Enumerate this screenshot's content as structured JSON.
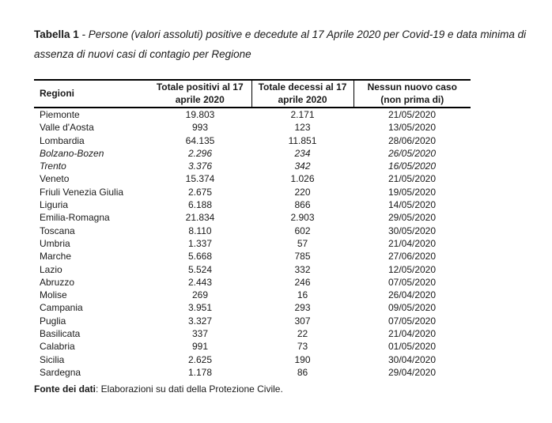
{
  "caption": {
    "label": "Tabella 1",
    "rest": " - Persone (valori assoluti) positive e decedute al 17 Aprile 2020 per Covid-19 e data minima di assenza di nuovi casi di contagio per Regione"
  },
  "table": {
    "headers": [
      {
        "label": "Regioni"
      },
      {
        "label": "Totale positivi al 17\naprile 2020"
      },
      {
        "label": "Totale decessi al 17\naprile 2020"
      },
      {
        "label": "Nessun nuovo caso\n(non prima di)"
      }
    ],
    "rows": [
      {
        "region": "Piemonte",
        "positivi": "19.803",
        "decessi": "2.171",
        "nessun_nuovo_caso": "21/05/2020",
        "italic": false
      },
      {
        "region": "Valle d'Aosta",
        "positivi": "993",
        "decessi": "123",
        "nessun_nuovo_caso": "13/05/2020",
        "italic": false
      },
      {
        "region": "Lombardia",
        "positivi": "64.135",
        "decessi": "11.851",
        "nessun_nuovo_caso": "28/06/2020",
        "italic": false
      },
      {
        "region": "Bolzano-Bozen",
        "positivi": "2.296",
        "decessi": "234",
        "nessun_nuovo_caso": "26/05/2020",
        "italic": true
      },
      {
        "region": "Trento",
        "positivi": "3.376",
        "decessi": "342",
        "nessun_nuovo_caso": "16/05/2020",
        "italic": true
      },
      {
        "region": "Veneto",
        "positivi": "15.374",
        "decessi": "1.026",
        "nessun_nuovo_caso": "21/05/2020",
        "italic": false
      },
      {
        "region": "Friuli Venezia Giulia",
        "positivi": "2.675",
        "decessi": "220",
        "nessun_nuovo_caso": "19/05/2020",
        "italic": false
      },
      {
        "region": "Liguria",
        "positivi": "6.188",
        "decessi": "866",
        "nessun_nuovo_caso": "14/05/2020",
        "italic": false
      },
      {
        "region": "Emilia-Romagna",
        "positivi": "21.834",
        "decessi": "2.903",
        "nessun_nuovo_caso": "29/05/2020",
        "italic": false
      },
      {
        "region": "Toscana",
        "positivi": "8.110",
        "decessi": "602",
        "nessun_nuovo_caso": "30/05/2020",
        "italic": false
      },
      {
        "region": "Umbria",
        "positivi": "1.337",
        "decessi": "57",
        "nessun_nuovo_caso": "21/04/2020",
        "italic": false
      },
      {
        "region": "Marche",
        "positivi": "5.668",
        "decessi": "785",
        "nessun_nuovo_caso": "27/06/2020",
        "italic": false
      },
      {
        "region": "Lazio",
        "positivi": "5.524",
        "decessi": "332",
        "nessun_nuovo_caso": "12/05/2020",
        "italic": false
      },
      {
        "region": "Abruzzo",
        "positivi": "2.443",
        "decessi": "246",
        "nessun_nuovo_caso": "07/05/2020",
        "italic": false
      },
      {
        "region": "Molise",
        "positivi": "269",
        "decessi": "16",
        "nessun_nuovo_caso": "26/04/2020",
        "italic": false
      },
      {
        "region": "Campania",
        "positivi": "3.951",
        "decessi": "293",
        "nessun_nuovo_caso": "09/05/2020",
        "italic": false
      },
      {
        "region": "Puglia",
        "positivi": "3.327",
        "decessi": "307",
        "nessun_nuovo_caso": "07/05/2020",
        "italic": false
      },
      {
        "region": "Basilicata",
        "positivi": "337",
        "decessi": "22",
        "nessun_nuovo_caso": "21/04/2020",
        "italic": false
      },
      {
        "region": "Calabria",
        "positivi": "991",
        "decessi": "73",
        "nessun_nuovo_caso": "01/05/2020",
        "italic": false
      },
      {
        "region": "Sicilia",
        "positivi": "2.625",
        "decessi": "190",
        "nessun_nuovo_caso": "30/04/2020",
        "italic": false
      },
      {
        "region": "Sardegna",
        "positivi": "1.178",
        "decessi": "86",
        "nessun_nuovo_caso": "29/04/2020",
        "italic": false
      }
    ]
  },
  "source": {
    "label": "Fonte dei dati",
    "text": ": Elaborazioni su dati della Protezione Civile."
  },
  "colors": {
    "text": "#1a1a1a",
    "border": "#000000",
    "background": "#ffffff"
  }
}
